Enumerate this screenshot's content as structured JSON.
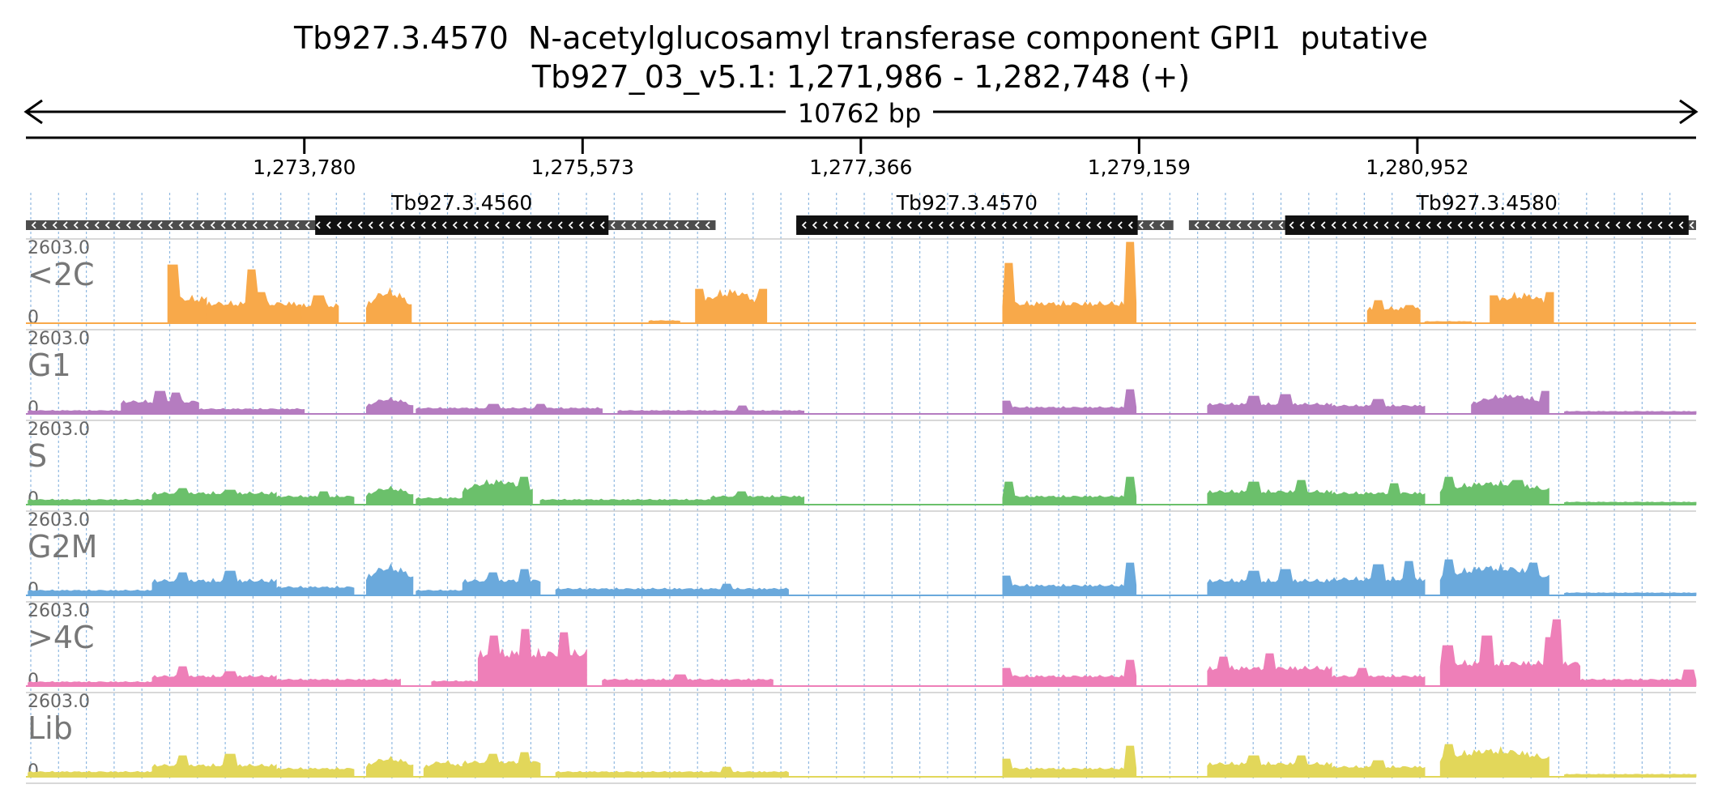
{
  "header": {
    "title_line1": "Tb927.3.4570  N-acetylglucosamyl transferase component GPI1  putative",
    "title_line2": "Tb927_03_v5.1: 1,271,986 - 1,282,748 (+)",
    "span_label": "10762 bp"
  },
  "region": {
    "start": 1271986,
    "end": 1282748
  },
  "ruler": {
    "ticks": [
      {
        "pos": 1273780,
        "label": "1,273,780"
      },
      {
        "pos": 1275573,
        "label": "1,275,573"
      },
      {
        "pos": 1277366,
        "label": "1,277,366"
      },
      {
        "pos": 1279159,
        "label": "1,279,159"
      },
      {
        "pos": 1280952,
        "label": "1,280,952"
      }
    ]
  },
  "genes": [
    {
      "name": "Tb927.3.4560",
      "strand": "-",
      "utr": [
        1271986,
        1276430
      ],
      "cds": [
        1273850,
        1275740
      ]
    },
    {
      "name": "Tb927.3.4570",
      "strand": "-",
      "utr": [
        1276950,
        1279380
      ],
      "cds": [
        1276950,
        1279150
      ]
    },
    {
      "name": "Tb927.3.4580",
      "strand": "-",
      "utr": [
        1279480,
        1282748
      ],
      "cds": [
        1280100,
        1282700
      ]
    }
  ],
  "tracks": {
    "max_label": "2603.0",
    "min_label": "0",
    "colors": {
      "<2C": "#f8a94a",
      "G1": "#b57cc0",
      "S": "#6bc06b",
      "G2M": "#6aa9dc",
      ">4C": "#ee7fb8",
      "Lib": "#e2d75a"
    },
    "items": [
      {
        "name": "<2C",
        "color": "#f8a94a",
        "blocks": [
          {
            "s": 1272900,
            "e": 1273150,
            "lvl": 0.3,
            "peaks": [
              [
                1272930,
                0.72
              ]
            ]
          },
          {
            "s": 1273150,
            "e": 1273760,
            "lvl": 0.24,
            "peaks": [
              [
                1273440,
                0.66
              ],
              [
                1273500,
                0.38
              ]
            ]
          },
          {
            "s": 1273760,
            "e": 1274000,
            "lvl": 0.22,
            "peaks": [
              [
                1273870,
                0.34
              ]
            ]
          },
          {
            "s": 1274180,
            "e": 1274470,
            "lvl": 0.22,
            "shape": "arch",
            "top": 0.38
          },
          {
            "s": 1276000,
            "e": 1276200,
            "lvl": 0.03
          },
          {
            "s": 1276300,
            "e": 1276760,
            "lvl": 0.2,
            "shape": "arch",
            "top": 0.38,
            "peaks": [
              [
                1276320,
                0.42
              ],
              [
                1276740,
                0.42
              ]
            ]
          },
          {
            "s": 1278280,
            "e": 1279140,
            "lvl": 0.24,
            "peaks": [
              [
                1278320,
                0.74
              ],
              [
                1279100,
                1.0
              ]
            ]
          },
          {
            "s": 1280630,
            "e": 1280970,
            "lvl": 0.18,
            "peaks": [
              [
                1280700,
                0.28
              ],
              [
                1280900,
                0.22
              ]
            ]
          },
          {
            "s": 1281000,
            "e": 1281300,
            "lvl": 0.02
          },
          {
            "s": 1281420,
            "e": 1281830,
            "lvl": 0.22,
            "shape": "arch",
            "top": 0.34,
            "peaks": [
              [
                1281440,
                0.34
              ],
              [
                1281810,
                0.38
              ]
            ]
          }
        ]
      },
      {
        "name": "G1",
        "color": "#b57cc0",
        "blocks": [
          {
            "s": 1272000,
            "e": 1272600,
            "lvl": 0.04
          },
          {
            "s": 1272600,
            "e": 1273100,
            "lvl": 0.15,
            "peaks": [
              [
                1272850,
                0.28
              ],
              [
                1272950,
                0.26
              ]
            ]
          },
          {
            "s": 1273100,
            "e": 1273780,
            "lvl": 0.06
          },
          {
            "s": 1274180,
            "e": 1274480,
            "lvl": 0.1,
            "shape": "arch",
            "top": 0.18
          },
          {
            "s": 1274500,
            "e": 1275700,
            "lvl": 0.07,
            "peaks": [
              [
                1275000,
                0.12
              ],
              [
                1275300,
                0.12
              ]
            ]
          },
          {
            "s": 1275800,
            "e": 1277000,
            "lvl": 0.04,
            "peaks": [
              [
                1276600,
                0.1
              ]
            ]
          },
          {
            "s": 1278280,
            "e": 1279140,
            "lvl": 0.08,
            "peaks": [
              [
                1278300,
                0.16
              ],
              [
                1279100,
                0.3
              ]
            ]
          },
          {
            "s": 1279600,
            "e": 1280400,
            "lvl": 0.12,
            "peaks": [
              [
                1279900,
                0.22
              ],
              [
                1280100,
                0.24
              ]
            ]
          },
          {
            "s": 1280400,
            "e": 1281000,
            "lvl": 0.1,
            "peaks": [
              [
                1280700,
                0.18
              ]
            ]
          },
          {
            "s": 1281300,
            "e": 1281800,
            "lvl": 0.13,
            "shape": "arch",
            "top": 0.22,
            "peaks": [
              [
                1281780,
                0.28
              ]
            ]
          },
          {
            "s": 1281900,
            "e": 1282748,
            "lvl": 0.03
          }
        ]
      },
      {
        "name": "S",
        "color": "#6bc06b",
        "blocks": [
          {
            "s": 1272000,
            "e": 1272800,
            "lvl": 0.06
          },
          {
            "s": 1272800,
            "e": 1273600,
            "lvl": 0.14,
            "peaks": [
              [
                1273000,
                0.2
              ],
              [
                1273300,
                0.18
              ]
            ]
          },
          {
            "s": 1273600,
            "e": 1274100,
            "lvl": 0.1,
            "peaks": [
              [
                1273900,
                0.16
              ]
            ]
          },
          {
            "s": 1274180,
            "e": 1274480,
            "lvl": 0.12,
            "shape": "arch",
            "top": 0.2
          },
          {
            "s": 1274500,
            "e": 1274800,
            "lvl": 0.08
          },
          {
            "s": 1274800,
            "e": 1275250,
            "lvl": 0.18,
            "shape": "arch",
            "top": 0.28,
            "peaks": [
              [
                1275200,
                0.34
              ]
            ]
          },
          {
            "s": 1275300,
            "e": 1276400,
            "lvl": 0.06
          },
          {
            "s": 1276400,
            "e": 1277000,
            "lvl": 0.1,
            "peaks": [
              [
                1276600,
                0.16
              ]
            ]
          },
          {
            "s": 1278280,
            "e": 1279140,
            "lvl": 0.1,
            "peaks": [
              [
                1278320,
                0.28
              ],
              [
                1279100,
                0.34
              ]
            ]
          },
          {
            "s": 1279600,
            "e": 1280400,
            "lvl": 0.16,
            "peaks": [
              [
                1279900,
                0.28
              ],
              [
                1280200,
                0.3
              ]
            ]
          },
          {
            "s": 1280400,
            "e": 1281000,
            "lvl": 0.14,
            "peaks": [
              [
                1280800,
                0.26
              ]
            ]
          },
          {
            "s": 1281100,
            "e": 1281800,
            "lvl": 0.18,
            "shape": "arch",
            "top": 0.26,
            "peaks": [
              [
                1281150,
                0.34
              ],
              [
                1281600,
                0.3
              ]
            ]
          },
          {
            "s": 1281900,
            "e": 1282748,
            "lvl": 0.03
          }
        ]
      },
      {
        "name": "G2M",
        "color": "#6aa9dc",
        "blocks": [
          {
            "s": 1272000,
            "e": 1272800,
            "lvl": 0.06
          },
          {
            "s": 1272800,
            "e": 1273600,
            "lvl": 0.18,
            "peaks": [
              [
                1273000,
                0.28
              ],
              [
                1273300,
                0.3
              ]
            ]
          },
          {
            "s": 1273600,
            "e": 1274100,
            "lvl": 0.1
          },
          {
            "s": 1274180,
            "e": 1274480,
            "lvl": 0.22,
            "shape": "arch",
            "top": 0.34
          },
          {
            "s": 1274500,
            "e": 1274800,
            "lvl": 0.06
          },
          {
            "s": 1274800,
            "e": 1275300,
            "lvl": 0.18,
            "peaks": [
              [
                1275000,
                0.28
              ],
              [
                1275200,
                0.32
              ]
            ]
          },
          {
            "s": 1275400,
            "e": 1276900,
            "lvl": 0.08,
            "peaks": [
              [
                1276500,
                0.14
              ]
            ]
          },
          {
            "s": 1278280,
            "e": 1279140,
            "lvl": 0.12,
            "peaks": [
              [
                1278300,
                0.24
              ],
              [
                1279100,
                0.4
              ]
            ]
          },
          {
            "s": 1279600,
            "e": 1280400,
            "lvl": 0.18,
            "peaks": [
              [
                1279900,
                0.3
              ],
              [
                1280100,
                0.32
              ]
            ]
          },
          {
            "s": 1280400,
            "e": 1281000,
            "lvl": 0.2,
            "peaks": [
              [
                1280700,
                0.38
              ],
              [
                1280900,
                0.42
              ]
            ]
          },
          {
            "s": 1281100,
            "e": 1281800,
            "lvl": 0.22,
            "shape": "arch",
            "top": 0.34,
            "peaks": [
              [
                1281150,
                0.44
              ],
              [
                1281700,
                0.4
              ]
            ]
          },
          {
            "s": 1281900,
            "e": 1282748,
            "lvl": 0.03
          }
        ]
      },
      {
        "name": ">4C",
        "color": "#ee7fb8",
        "blocks": [
          {
            "s": 1272000,
            "e": 1272800,
            "lvl": 0.05
          },
          {
            "s": 1272800,
            "e": 1273600,
            "lvl": 0.12,
            "peaks": [
              [
                1273000,
                0.24
              ],
              [
                1273300,
                0.18
              ]
            ]
          },
          {
            "s": 1273600,
            "e": 1274400,
            "lvl": 0.08
          },
          {
            "s": 1274600,
            "e": 1274900,
            "lvl": 0.06
          },
          {
            "s": 1274900,
            "e": 1275600,
            "lvl": 0.4,
            "peaks": [
              [
                1275000,
                0.62
              ],
              [
                1275200,
                0.7
              ],
              [
                1275450,
                0.66
              ],
              [
                1275550,
                0.34
              ]
            ]
          },
          {
            "s": 1275700,
            "e": 1276800,
            "lvl": 0.08,
            "peaks": [
              [
                1276200,
                0.14
              ]
            ]
          },
          {
            "s": 1278280,
            "e": 1279140,
            "lvl": 0.12,
            "peaks": [
              [
                1278300,
                0.22
              ],
              [
                1279100,
                0.32
              ]
            ]
          },
          {
            "s": 1279600,
            "e": 1280400,
            "lvl": 0.22,
            "peaks": [
              [
                1279700,
                0.36
              ],
              [
                1280000,
                0.4
              ]
            ]
          },
          {
            "s": 1280400,
            "e": 1281000,
            "lvl": 0.12,
            "peaks": [
              [
                1280600,
                0.22
              ]
            ]
          },
          {
            "s": 1281100,
            "e": 1282000,
            "lvl": 0.28,
            "peaks": [
              [
                1281150,
                0.5
              ],
              [
                1281400,
                0.62
              ],
              [
                1281800,
                0.6
              ],
              [
                1281850,
                0.82
              ]
            ]
          },
          {
            "s": 1282000,
            "e": 1282748,
            "lvl": 0.08,
            "peaks": [
              [
                1282700,
                0.2
              ]
            ]
          }
        ]
      },
      {
        "name": "Lib",
        "color": "#e2d75a",
        "blocks": [
          {
            "s": 1272000,
            "e": 1272800,
            "lvl": 0.06
          },
          {
            "s": 1272800,
            "e": 1273600,
            "lvl": 0.14,
            "peaks": [
              [
                1273000,
                0.26
              ],
              [
                1273300,
                0.28
              ]
            ]
          },
          {
            "s": 1273600,
            "e": 1274100,
            "lvl": 0.1
          },
          {
            "s": 1274180,
            "e": 1274480,
            "lvl": 0.14,
            "shape": "arch",
            "top": 0.22
          },
          {
            "s": 1274550,
            "e": 1274800,
            "lvl": 0.12,
            "shape": "arch",
            "top": 0.18
          },
          {
            "s": 1274800,
            "e": 1275300,
            "lvl": 0.18,
            "peaks": [
              [
                1275000,
                0.28
              ],
              [
                1275200,
                0.3
              ]
            ]
          },
          {
            "s": 1275400,
            "e": 1276900,
            "lvl": 0.06,
            "peaks": [
              [
                1276500,
                0.12
              ]
            ]
          },
          {
            "s": 1278280,
            "e": 1279140,
            "lvl": 0.1,
            "peaks": [
              [
                1278300,
                0.22
              ],
              [
                1279100,
                0.38
              ]
            ]
          },
          {
            "s": 1279600,
            "e": 1280400,
            "lvl": 0.16,
            "peaks": [
              [
                1279900,
                0.26
              ],
              [
                1280200,
                0.26
              ]
            ]
          },
          {
            "s": 1280400,
            "e": 1281000,
            "lvl": 0.12,
            "peaks": [
              [
                1280700,
                0.2
              ]
            ]
          },
          {
            "s": 1281100,
            "e": 1281800,
            "lvl": 0.22,
            "shape": "arch",
            "top": 0.32,
            "peaks": [
              [
                1281150,
                0.4
              ]
            ]
          },
          {
            "s": 1281900,
            "e": 1282748,
            "lvl": 0.03
          }
        ]
      }
    ]
  }
}
